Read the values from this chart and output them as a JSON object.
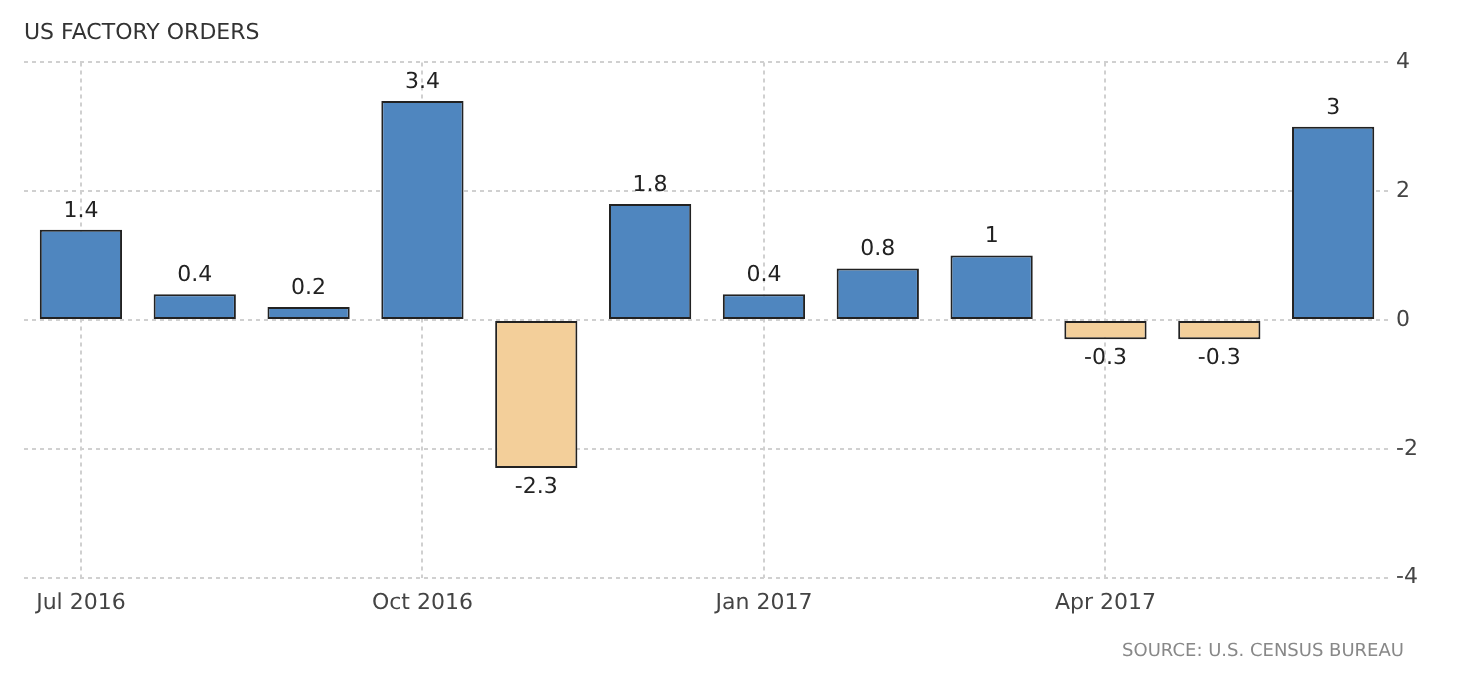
{
  "chart_data": {
    "type": "bar",
    "title": "US FACTORY ORDERS",
    "categories": [
      "Jul 2016",
      null,
      null,
      "Oct 2016",
      null,
      null,
      "Jan 2017",
      null,
      null,
      "Apr 2017",
      null,
      null
    ],
    "values": [
      1.4,
      0.4,
      0.2,
      3.4,
      -2.3,
      1.8,
      0.4,
      0.8,
      1,
      -0.3,
      -0.3,
      3
    ],
    "colors": [
      "#4f86bf",
      "#4f86bf",
      "#4f86bf",
      "#4f86bf",
      "#f3cf9a",
      "#4f86bf",
      "#4f86bf",
      "#4f86bf",
      "#4f86bf",
      "#f3cf9a",
      "#f3cf9a",
      "#4f86bf"
    ],
    "ylim": [
      -4,
      4
    ],
    "yticks": [
      -4,
      -2,
      0,
      2,
      4
    ],
    "grid": true,
    "data_labels": true,
    "annotations": [
      "SOURCE: U.S. CENSUS BUREAU"
    ]
  }
}
